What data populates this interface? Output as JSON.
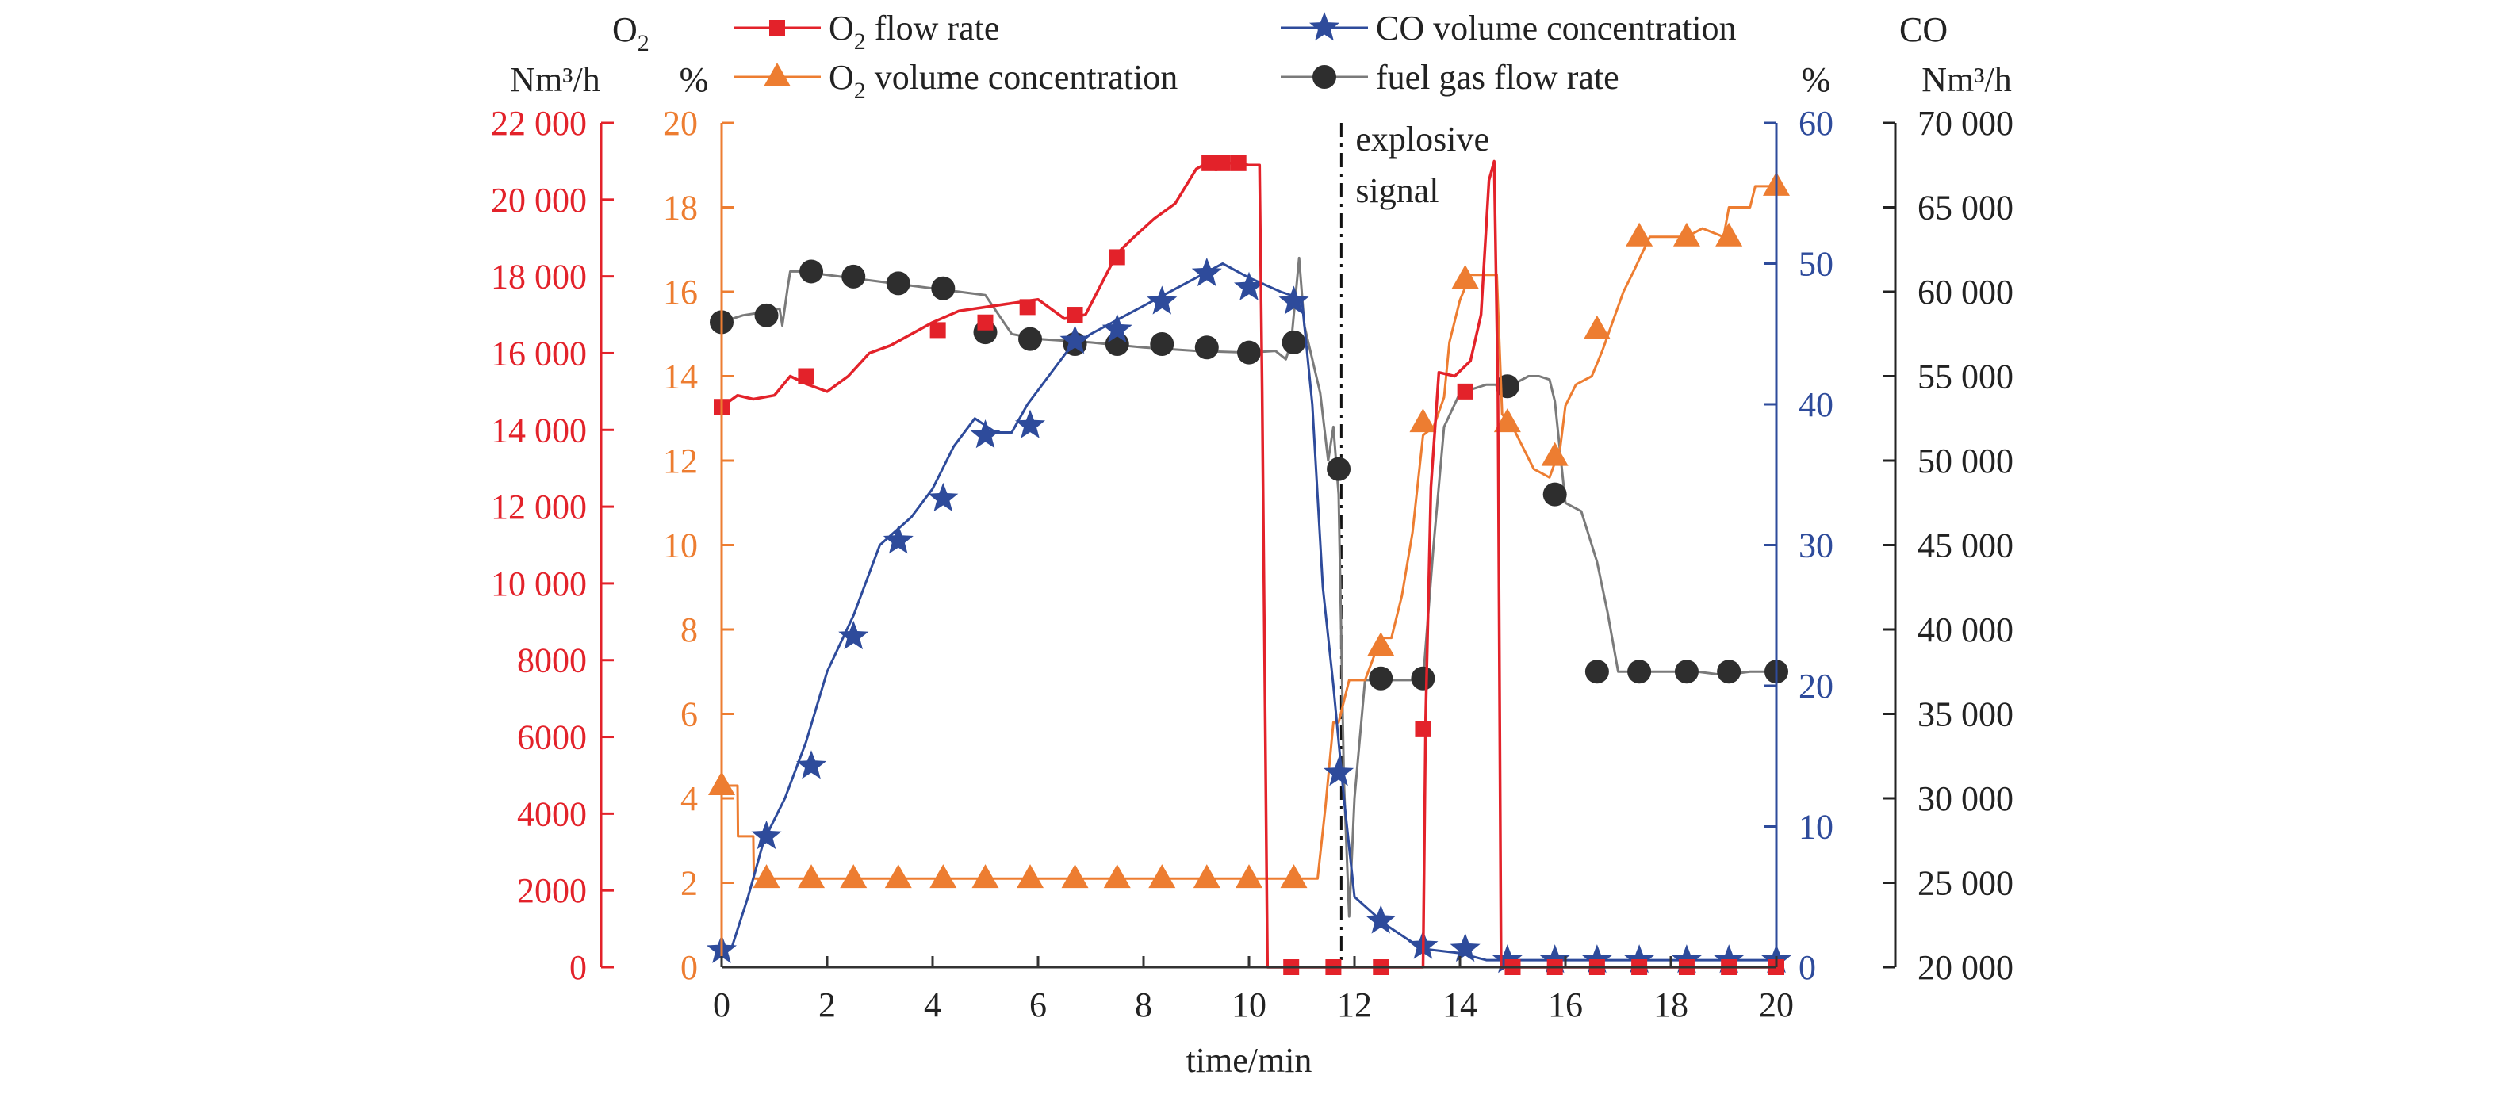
{
  "chart_data": {
    "type": "line",
    "xlabel": "time/min",
    "x_ticks": [
      "0",
      "2",
      "4",
      "6",
      "8",
      "10",
      "12",
      "14",
      "16",
      "18",
      "20"
    ],
    "xlim": [
      0,
      20
    ],
    "axes": {
      "o2_flow": {
        "unit_top": "O",
        "unit_sub": "2",
        "unit": "Nm³/h",
        "color": "#e3222a",
        "ylim": [
          0,
          22000
        ],
        "ticks": [
          "0",
          "2000",
          "4000",
          "6000",
          "8000",
          "10 000",
          "12 000",
          "14 000",
          "16 000",
          "18 000",
          "20 000",
          "22 000"
        ]
      },
      "o2_conc": {
        "unit": "%",
        "color": "#ed7d31",
        "ylim": [
          0,
          20
        ],
        "ticks": [
          "0",
          "2",
          "4",
          "6",
          "8",
          "10",
          "12",
          "14",
          "16",
          "18",
          "20"
        ]
      },
      "co_conc": {
        "unit": "%",
        "color": "#2e4b9b",
        "ylim": [
          0,
          60
        ],
        "ticks": [
          "0",
          "10",
          "20",
          "30",
          "40",
          "50",
          "60"
        ]
      },
      "fuel_flow": {
        "unit_top": "CO",
        "unit": "Nm³/h",
        "color": "#3a3a3a",
        "ylim": [
          20000,
          70000
        ],
        "ticks": [
          "20 000",
          "25 000",
          "30 000",
          "35 000",
          "40 000",
          "45 000",
          "50 000",
          "55 000",
          "60 000",
          "65 000",
          "70 000"
        ]
      }
    },
    "legend": {
      "o2_flow_label": "O",
      "o2_flow_sub": "2",
      "o2_flow_rest": " flow rate",
      "o2_conc_label": "O",
      "o2_conc_sub": "2",
      "o2_conc_rest": " volume concentration",
      "co_conc_label": "CO volume concentration",
      "fuel_flow_label": "fuel gas flow rate"
    },
    "annotation": {
      "line1": "explosive",
      "line2": "signal",
      "x": 11.75
    },
    "series": [
      {
        "key": "o2_flow",
        "axis": "o2_flow",
        "marker": "square",
        "color": "#e3222a",
        "x": [
          0,
          0.3,
          0.6,
          1.0,
          1.3,
          1.6,
          2.0,
          2.4,
          2.8,
          3.2,
          3.6,
          4.0,
          4.5,
          5.0,
          5.5,
          6.0,
          6.5,
          6.9,
          7.2,
          7.5,
          7.8,
          8.2,
          8.6,
          9.0,
          9.2,
          9.5,
          9.8,
          10.0,
          10.2,
          10.25,
          10.35,
          11.0,
          11.5,
          12.0,
          12.5,
          13.0,
          13.3,
          13.35,
          13.45,
          13.6,
          13.9,
          14.2,
          14.4,
          14.55,
          14.65,
          14.72,
          14.78,
          15.0,
          16.0,
          17.0,
          18.0,
          19.0,
          20.0
        ],
        "y": [
          14600,
          14900,
          14800,
          14900,
          15400,
          15200,
          15000,
          15400,
          16000,
          16200,
          16500,
          16800,
          17100,
          17200,
          17300,
          17400,
          16900,
          17000,
          17800,
          18600,
          19000,
          19500,
          19900,
          20800,
          20950,
          20950,
          20950,
          20900,
          20900,
          15000,
          0,
          0,
          0,
          0,
          0,
          0,
          0,
          6500,
          12500,
          15500,
          15400,
          15800,
          17000,
          20500,
          21000,
          15000,
          0,
          0,
          0,
          0,
          0,
          0,
          0
        ],
        "markers": [
          [
            0,
            14600
          ],
          [
            1.6,
            15400
          ],
          [
            4.1,
            16600
          ],
          [
            5.0,
            16800
          ],
          [
            5.8,
            17200
          ],
          [
            6.7,
            17000
          ],
          [
            7.5,
            18500
          ],
          [
            9.25,
            20950
          ],
          [
            9.5,
            20950
          ],
          [
            9.8,
            20950
          ],
          [
            10.8,
            0
          ],
          [
            11.6,
            0
          ],
          [
            12.5,
            0
          ],
          [
            13.3,
            6200
          ],
          [
            14.1,
            15000
          ],
          [
            15.0,
            0
          ],
          [
            15.8,
            0
          ],
          [
            16.6,
            0
          ],
          [
            17.4,
            0
          ],
          [
            18.3,
            0
          ],
          [
            19.1,
            0
          ],
          [
            20.0,
            0
          ]
        ]
      },
      {
        "key": "o2_conc",
        "axis": "o2_conc",
        "marker": "triangle",
        "color": "#ed7d31",
        "x": [
          0,
          0.3,
          0.31,
          0.6,
          0.61,
          0.8,
          10.2,
          11.3,
          11.45,
          11.6,
          11.7,
          11.9,
          12.1,
          12.2,
          12.5,
          12.7,
          12.9,
          13.1,
          13.3,
          13.5,
          13.7,
          13.8,
          14.0,
          14.2,
          14.7,
          14.8,
          15.0,
          15.2,
          15.4,
          15.7,
          15.9,
          16.0,
          16.2,
          16.5,
          16.7,
          16.9,
          17.1,
          17.3,
          17.6,
          17.8,
          18.0,
          18.3,
          18.6,
          19.0,
          19.1,
          19.5,
          19.6,
          20.0
        ],
        "y": [
          4.3,
          4.3,
          3.1,
          3.1,
          2.1,
          2.1,
          2.1,
          2.1,
          3.8,
          5.8,
          5.8,
          6.8,
          6.8,
          6.8,
          7.8,
          7.8,
          8.8,
          10.3,
          12.6,
          12.8,
          13.5,
          14.8,
          15.8,
          16.4,
          16.4,
          13.1,
          12.8,
          12.3,
          11.8,
          11.6,
          12.3,
          13.3,
          13.8,
          14.0,
          14.6,
          15.3,
          16.0,
          16.5,
          17.3,
          17.3,
          17.3,
          17.3,
          17.5,
          17.3,
          18.0,
          18.0,
          18.5,
          18.5
        ],
        "markers": [
          [
            0,
            4.3
          ],
          [
            0.85,
            2.1
          ],
          [
            1.7,
            2.1
          ],
          [
            2.5,
            2.1
          ],
          [
            3.35,
            2.1
          ],
          [
            4.2,
            2.1
          ],
          [
            5.0,
            2.1
          ],
          [
            5.85,
            2.1
          ],
          [
            6.7,
            2.1
          ],
          [
            7.5,
            2.1
          ],
          [
            8.35,
            2.1
          ],
          [
            9.2,
            2.1
          ],
          [
            10.0,
            2.1
          ],
          [
            10.85,
            2.1
          ],
          [
            12.5,
            7.6
          ],
          [
            13.3,
            12.9
          ],
          [
            14.1,
            16.3
          ],
          [
            14.9,
            12.9
          ],
          [
            15.8,
            12.1
          ],
          [
            16.6,
            15.1
          ],
          [
            17.4,
            17.3
          ],
          [
            18.3,
            17.3
          ],
          [
            19.1,
            17.3
          ],
          [
            20.0,
            18.5
          ]
        ]
      },
      {
        "key": "co_conc",
        "axis": "co_conc",
        "marker": "star",
        "color": "#2e4b9b",
        "x": [
          0,
          0.2,
          0.5,
          0.8,
          1.2,
          1.6,
          2.0,
          2.5,
          3.0,
          3.3,
          3.6,
          4.0,
          4.4,
          4.8,
          5.2,
          5.5,
          5.8,
          6.2,
          6.6,
          7.0,
          7.5,
          8.0,
          8.5,
          9.0,
          9.5,
          10.0,
          10.6,
          11.0,
          11.2,
          11.4,
          11.6,
          11.8,
          12.0,
          12.3,
          12.6,
          13.0,
          13.3,
          14.0,
          14.5,
          15.0,
          16.0,
          17.0,
          18.0,
          19.0,
          20.0
        ],
        "y": [
          1.0,
          1.5,
          5.0,
          9.0,
          12.0,
          16.0,
          21.0,
          25.0,
          30.0,
          31.0,
          32.0,
          34.0,
          37.0,
          39.0,
          38.0,
          38.0,
          40.0,
          42.0,
          44.0,
          45.0,
          46.0,
          47.0,
          48.0,
          49.0,
          50.0,
          49.0,
          48.0,
          47.5,
          40.0,
          27.0,
          20.0,
          12.0,
          5.0,
          4.0,
          3.0,
          2.0,
          1.3,
          1.0,
          0.5,
          0.5,
          0.5,
          0.5,
          0.5,
          0.5,
          0.5
        ],
        "markers": [
          [
            0,
            1.2
          ],
          [
            0.85,
            9.3
          ],
          [
            1.7,
            14.3
          ],
          [
            2.5,
            23.5
          ],
          [
            3.35,
            30.3
          ],
          [
            4.2,
            33.3
          ],
          [
            5.0,
            37.8
          ],
          [
            5.85,
            38.5
          ],
          [
            6.7,
            44.5
          ],
          [
            7.5,
            45.3
          ],
          [
            8.35,
            47.3
          ],
          [
            9.2,
            49.3
          ],
          [
            10.0,
            48.3
          ],
          [
            10.85,
            47.3
          ],
          [
            11.7,
            13.8
          ],
          [
            12.5,
            3.3
          ],
          [
            13.3,
            1.5
          ],
          [
            14.1,
            1.3
          ],
          [
            14.9,
            0.5
          ],
          [
            15.8,
            0.5
          ],
          [
            16.6,
            0.5
          ],
          [
            17.4,
            0.5
          ],
          [
            18.3,
            0.5
          ],
          [
            19.1,
            0.5
          ],
          [
            20.0,
            0.5
          ]
        ]
      },
      {
        "key": "fuel_flow",
        "axis": "fuel_flow",
        "marker": "circle",
        "color": "#3a3a3a",
        "x": [
          0,
          0.4,
          0.8,
          1.1,
          1.15,
          1.25,
          1.3,
          1.5,
          2.0,
          2.5,
          3.0,
          3.5,
          4.0,
          4.5,
          5.0,
          5.5,
          6.0,
          7.0,
          8.0,
          9.0,
          10.0,
          10.5,
          10.7,
          10.8,
          10.95,
          11.05,
          11.2,
          11.35,
          11.5,
          11.6,
          11.7,
          11.8,
          11.9,
          12.0,
          12.2,
          12.5,
          13.0,
          13.3,
          13.5,
          13.7,
          14.0,
          14.5,
          15.0,
          15.3,
          15.5,
          15.7,
          15.8,
          16.0,
          16.3,
          16.6,
          16.8,
          17.0,
          17.5,
          18.0,
          18.5,
          19.0,
          19.5,
          20.0
        ],
        "y": [
          58200,
          58600,
          58800,
          59000,
          58000,
          60200,
          61200,
          61200,
          61000,
          60800,
          60600,
          60400,
          60200,
          60000,
          59800,
          57500,
          57200,
          57000,
          56700,
          56500,
          56400,
          56500,
          56000,
          57000,
          62000,
          58000,
          56000,
          54000,
          50000,
          52000,
          48000,
          31000,
          23000,
          30000,
          37000,
          37000,
          37000,
          37000,
          45000,
          52000,
          54000,
          54500,
          54500,
          55000,
          55000,
          54800,
          53500,
          47500,
          47000,
          44000,
          41000,
          37500,
          37500,
          37500,
          37500,
          37300,
          37500,
          37500
        ],
        "markers": [
          [
            0,
            58200
          ],
          [
            0.85,
            58600
          ],
          [
            1.7,
            61200
          ],
          [
            2.5,
            60900
          ],
          [
            3.35,
            60500
          ],
          [
            4.2,
            60200
          ],
          [
            5.0,
            57600
          ],
          [
            5.85,
            57200
          ],
          [
            6.7,
            56900
          ],
          [
            7.5,
            56900
          ],
          [
            8.35,
            56900
          ],
          [
            9.2,
            56700
          ],
          [
            10.0,
            56400
          ],
          [
            10.85,
            57000
          ],
          [
            11.7,
            49500
          ],
          [
            12.5,
            37100
          ],
          [
            13.3,
            37100
          ],
          [
            14.9,
            54400
          ],
          [
            15.8,
            48000
          ],
          [
            16.6,
            37500
          ],
          [
            17.4,
            37500
          ],
          [
            18.3,
            37500
          ],
          [
            19.1,
            37500
          ],
          [
            20.0,
            37500
          ]
        ]
      }
    ]
  }
}
